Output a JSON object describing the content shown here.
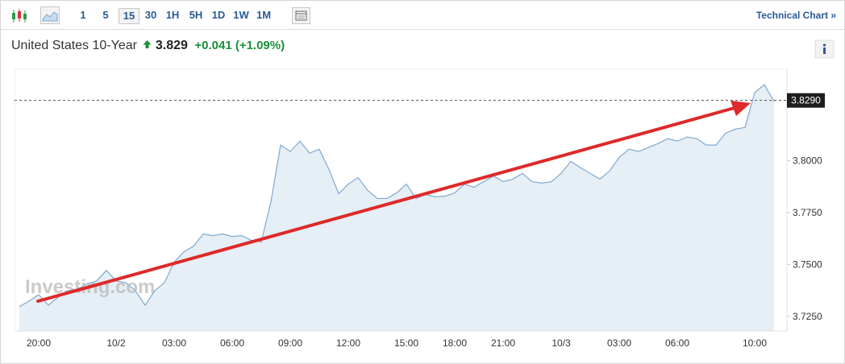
{
  "toolbar": {
    "intervals": [
      "1",
      "5",
      "15",
      "30",
      "1H",
      "5H",
      "1D",
      "1W",
      "1M"
    ],
    "selected": "15",
    "link": "Technical Chart »"
  },
  "header": {
    "title": "United States 10-Year",
    "price": "3.829",
    "change": "+0.041 (+1.09%)"
  },
  "chart_data": {
    "type": "area",
    "color": "#7fa9d1",
    "fill_color": "#e6eef6",
    "watermark": "Investing.com",
    "categories": [
      null,
      null,
      "20:00",
      null,
      null,
      null,
      null,
      null,
      null,
      null,
      "10/2",
      null,
      null,
      null,
      null,
      null,
      "03:00",
      null,
      null,
      null,
      null,
      null,
      "06:00",
      null,
      null,
      null,
      null,
      null,
      "09:00",
      null,
      null,
      null,
      null,
      null,
      "12:00",
      null,
      null,
      null,
      null,
      null,
      "15:00",
      null,
      null,
      null,
      null,
      "18:00",
      null,
      null,
      null,
      null,
      "21:00",
      null,
      null,
      null,
      null,
      null,
      "10/3",
      null,
      null,
      null,
      null,
      null,
      "03:00",
      null,
      null,
      null,
      null,
      null,
      "06:00",
      null,
      null,
      null,
      null,
      null,
      null,
      null,
      "10:00",
      null,
      null
    ],
    "values": [
      3.7297,
      3.7324,
      3.7355,
      3.7304,
      3.7343,
      3.7374,
      3.7382,
      3.7406,
      3.7421,
      3.7472,
      3.7421,
      3.7413,
      3.7374,
      3.7304,
      3.7374,
      3.7413,
      3.7511,
      3.7561,
      3.7588,
      3.7647,
      3.7639,
      3.7647,
      3.7635,
      3.7639,
      3.7616,
      3.7608,
      3.7802,
      3.8075,
      3.8044,
      3.8094,
      3.8036,
      3.8055,
      3.7958,
      3.7841,
      3.7887,
      3.7919,
      3.7857,
      3.7818,
      3.7818,
      3.7845,
      3.7887,
      3.7818,
      3.7837,
      3.7826,
      3.7829,
      3.7845,
      3.7887,
      3.7872,
      3.7899,
      3.7926,
      3.7899,
      3.7911,
      3.7939,
      3.7899,
      3.7892,
      3.7899,
      3.7939,
      3.7997,
      3.7966,
      3.7939,
      3.7911,
      3.795,
      3.8016,
      3.8055,
      3.8044,
      3.8063,
      3.8082,
      3.8106,
      3.8094,
      3.8114,
      3.8106,
      3.8075,
      3.8075,
      3.8133,
      3.8152,
      3.816,
      3.8328,
      3.8366,
      3.8285
    ],
    "ylim": [
      3.718,
      3.844
    ],
    "yticks": [
      {
        "value": 3.725,
        "label": "3.7250"
      },
      {
        "value": 3.75,
        "label": "3.7500"
      },
      {
        "value": 3.775,
        "label": "3.7750"
      },
      {
        "value": 3.8,
        "label": "3.8000"
      }
    ],
    "last_value": {
      "value": 3.829,
      "label": "3.8290"
    }
  }
}
